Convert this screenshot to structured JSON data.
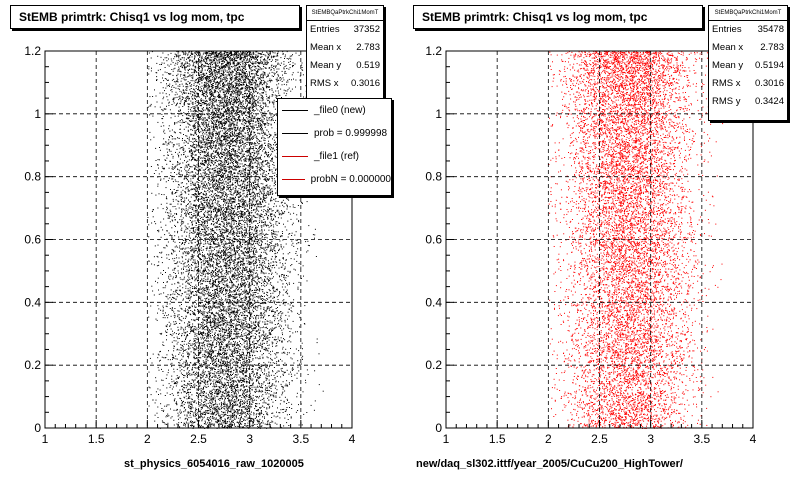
{
  "chart_data": [
    {
      "type": "scatter",
      "title": "StEMB primtrk: Chisq1 vs log mom, tpc",
      "xlabel": "st_physics_6054016_raw_1020005",
      "xlim": [
        1,
        4
      ],
      "ylim": [
        0,
        1.2
      ],
      "x_ticks": [
        "1",
        "1.5",
        "2",
        "2.5",
        "3",
        "3.5",
        "4"
      ],
      "y_ticks": [
        "0",
        "0.2",
        "0.4",
        "0.6",
        "0.8",
        "1",
        "1.2"
      ],
      "grid": true,
      "marker_color": "#000000",
      "distribution": {
        "x_min": 2.0,
        "x_max": 3.75,
        "x_mean": 2.783,
        "x_rms": 0.3016,
        "y_min": 0.0,
        "y_max": 1.2
      },
      "stats": {
        "name": "StEMBQaPtrkChi1MomT",
        "rows": [
          {
            "label": "Entries",
            "value": "37352"
          },
          {
            "label": "Mean x",
            "value": "2.783"
          },
          {
            "label": "Mean y",
            "value": "0.519"
          },
          {
            "label": "RMS x",
            "value": "0.3016"
          }
        ]
      },
      "legend": {
        "position": "top-right",
        "entries": [
          {
            "label": "_file0 (new)",
            "color": "#000000"
          },
          {
            "label": "prob = 0.999998",
            "color": "#000000"
          },
          {
            "label": "_file1 (ref)",
            "color": "#cc0000"
          },
          {
            "label": "probN = 0.000000",
            "color": "#cc0000"
          }
        ]
      }
    },
    {
      "type": "scatter",
      "title": "StEMB primtrk: Chisq1 vs log mom, tpc",
      "xlabel": "new/daq_sl302.ittf/year_2005/CuCu200_HighTower/",
      "xlim": [
        1,
        4
      ],
      "ylim": [
        0,
        1.2
      ],
      "x_ticks": [
        "1",
        "1.5",
        "2",
        "2.5",
        "3",
        "3.5",
        "4"
      ],
      "y_ticks": [
        "0",
        "0.2",
        "0.4",
        "0.6",
        "0.8",
        "1",
        "1.2"
      ],
      "grid": true,
      "marker_color": "#ff0000",
      "distribution": {
        "x_min": 2.0,
        "x_max": 3.75,
        "x_mean": 2.783,
        "x_rms": 0.3016,
        "y_min": 0.0,
        "y_max": 1.2
      },
      "stats": {
        "name": "StEMBQaPtrkChi1MomT",
        "rows": [
          {
            "label": "Entries",
            "value": "35478"
          },
          {
            "label": "Mean x",
            "value": "2.783"
          },
          {
            "label": "Mean y",
            "value": "0.5194"
          },
          {
            "label": "RMS x",
            "value": "0.3016"
          },
          {
            "label": "RMS y",
            "value": "0.3424"
          }
        ]
      }
    }
  ]
}
